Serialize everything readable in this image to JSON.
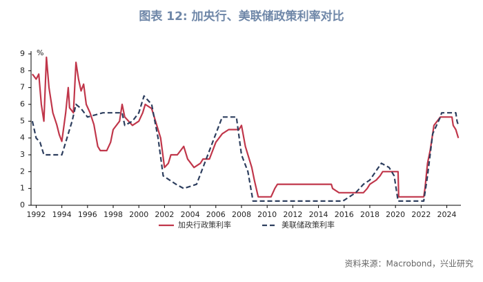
{
  "chart_data": {
    "type": "line",
    "title": "图表 12: 加央行、美联储政策利率对比",
    "y_unit": "%",
    "source": "资料来源：Macrobond，兴业研究",
    "xlim": [
      1991.6,
      2025.1
    ],
    "xticks": [
      1992,
      1994,
      1996,
      1998,
      2000,
      2002,
      2004,
      2006,
      2008,
      2010,
      2012,
      2014,
      2016,
      2018,
      2020,
      2022,
      2024
    ],
    "ylim": [
      0,
      9
    ],
    "yticks": [
      0,
      1,
      2,
      3,
      4,
      5,
      6,
      7,
      8,
      9
    ],
    "series": [
      {
        "name": "加央行政策利率",
        "color": "#c0364a",
        "dash": false,
        "x": [
          1991.7,
          1992.0,
          1992.2,
          1992.4,
          1992.6,
          1992.8,
          1993.0,
          1993.3,
          1993.6,
          1993.8,
          1994.0,
          1994.3,
          1994.5,
          1994.6,
          1994.9,
          1995.1,
          1995.3,
          1995.5,
          1995.7,
          1995.9,
          1996.2,
          1996.5,
          1996.8,
          1997.0,
          1997.5,
          1997.8,
          1998.0,
          1998.5,
          1998.7,
          1998.9,
          1999.2,
          1999.5,
          2000.0,
          2000.3,
          2000.5,
          2001.0,
          2001.3,
          2001.7,
          2002.0,
          2002.3,
          2002.5,
          2003.0,
          2003.5,
          2003.8,
          2004.3,
          2004.8,
          2005.0,
          2005.5,
          2006.0,
          2006.5,
          2007.0,
          2007.8,
          2008.0,
          2008.3,
          2008.8,
          2009.0,
          2009.3,
          2010.3,
          2010.6,
          2010.8,
          2015.0,
          2015.1,
          2015.6,
          2017.5,
          2017.8,
          2018.0,
          2018.5,
          2018.8,
          2019.0,
          2020.2,
          2020.25,
          2022.2,
          2022.3,
          2022.5,
          2022.7,
          2022.9,
          2023.0,
          2023.5,
          2024.4,
          2024.5,
          2024.7,
          2024.9
        ],
        "values": [
          7.8,
          7.5,
          7.8,
          6,
          5,
          8.8,
          7,
          5.5,
          4.8,
          4.2,
          3.8,
          5.5,
          7,
          5.8,
          5.5,
          8.5,
          7.5,
          6.8,
          7.2,
          6,
          5.5,
          4.8,
          3.5,
          3.25,
          3.25,
          3.75,
          4.5,
          5,
          6,
          5.25,
          5,
          4.75,
          5,
          5.5,
          6,
          5.75,
          5,
          4,
          2.25,
          2.5,
          3,
          3,
          3.5,
          2.75,
          2.25,
          2.5,
          2.75,
          2.75,
          3.75,
          4.25,
          4.5,
          4.5,
          4.75,
          3.5,
          2.25,
          1.5,
          0.5,
          0.5,
          1,
          1.25,
          1.25,
          1,
          0.75,
          0.75,
          1,
          1.25,
          1.5,
          1.75,
          2,
          2,
          0.5,
          0.5,
          1,
          2.5,
          3.25,
          4.25,
          4.75,
          5.25,
          5.25,
          4.75,
          4.5,
          4
        ]
      },
      {
        "name": "美联储政策利率",
        "color": "#2d3e5e",
        "dash": true,
        "x": [
          1991.7,
          1992.0,
          1992.3,
          1992.6,
          1994.0,
          1994.2,
          1994.5,
          1994.8,
          1995.1,
          1995.5,
          1996.0,
          1997.2,
          1998.7,
          1998.9,
          1999.5,
          2000.0,
          2000.4,
          2001.0,
          2001.5,
          2001.9,
          2002.9,
          2003.5,
          2004.5,
          2005.0,
          2006.0,
          2006.5,
          2007.6,
          2008.0,
          2008.5,
          2008.9,
          2015.9,
          2016.9,
          2017.5,
          2018.0,
          2018.9,
          2019.5,
          2019.9,
          2020.2,
          2022.2,
          2022.5,
          2022.9,
          2023.5,
          2023.6,
          2024.7,
          2024.8,
          2024.9
        ],
        "values": [
          5,
          4,
          3.75,
          3,
          3,
          3.5,
          4.25,
          5,
          6,
          5.75,
          5.25,
          5.5,
          5.5,
          4.75,
          5,
          5.5,
          6.5,
          6,
          4,
          1.75,
          1.25,
          1,
          1.25,
          2.25,
          4.25,
          5.25,
          5.25,
          3,
          2,
          0.25,
          0.25,
          0.75,
          1.25,
          1.5,
          2.5,
          2.25,
          1.75,
          0.25,
          0.25,
          1.75,
          4.25,
          5.25,
          5.5,
          5.5,
          5,
          4.75
        ]
      }
    ]
  }
}
